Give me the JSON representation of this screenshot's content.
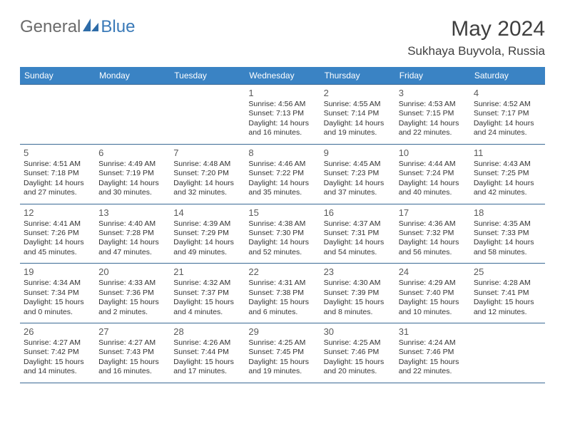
{
  "brand": {
    "general": "General",
    "blue": "Blue"
  },
  "title": "May 2024",
  "location": "Sukhaya Buyvola, Russia",
  "colors": {
    "header_bg": "#3a83c4",
    "row_border": "#3a6a95",
    "brand_gray": "#6b6b6b",
    "brand_blue": "#3a7ab8",
    "text": "#333333",
    "bg": "#ffffff"
  },
  "dow": [
    "Sunday",
    "Monday",
    "Tuesday",
    "Wednesday",
    "Thursday",
    "Friday",
    "Saturday"
  ],
  "weeks": [
    [
      null,
      null,
      null,
      {
        "n": "1",
        "sr": "4:56 AM",
        "ss": "7:13 PM",
        "dh": "14",
        "dm": "16"
      },
      {
        "n": "2",
        "sr": "4:55 AM",
        "ss": "7:14 PM",
        "dh": "14",
        "dm": "19"
      },
      {
        "n": "3",
        "sr": "4:53 AM",
        "ss": "7:15 PM",
        "dh": "14",
        "dm": "22"
      },
      {
        "n": "4",
        "sr": "4:52 AM",
        "ss": "7:17 PM",
        "dh": "14",
        "dm": "24"
      }
    ],
    [
      {
        "n": "5",
        "sr": "4:51 AM",
        "ss": "7:18 PM",
        "dh": "14",
        "dm": "27"
      },
      {
        "n": "6",
        "sr": "4:49 AM",
        "ss": "7:19 PM",
        "dh": "14",
        "dm": "30"
      },
      {
        "n": "7",
        "sr": "4:48 AM",
        "ss": "7:20 PM",
        "dh": "14",
        "dm": "32"
      },
      {
        "n": "8",
        "sr": "4:46 AM",
        "ss": "7:22 PM",
        "dh": "14",
        "dm": "35"
      },
      {
        "n": "9",
        "sr": "4:45 AM",
        "ss": "7:23 PM",
        "dh": "14",
        "dm": "37"
      },
      {
        "n": "10",
        "sr": "4:44 AM",
        "ss": "7:24 PM",
        "dh": "14",
        "dm": "40"
      },
      {
        "n": "11",
        "sr": "4:43 AM",
        "ss": "7:25 PM",
        "dh": "14",
        "dm": "42"
      }
    ],
    [
      {
        "n": "12",
        "sr": "4:41 AM",
        "ss": "7:26 PM",
        "dh": "14",
        "dm": "45"
      },
      {
        "n": "13",
        "sr": "4:40 AM",
        "ss": "7:28 PM",
        "dh": "14",
        "dm": "47"
      },
      {
        "n": "14",
        "sr": "4:39 AM",
        "ss": "7:29 PM",
        "dh": "14",
        "dm": "49"
      },
      {
        "n": "15",
        "sr": "4:38 AM",
        "ss": "7:30 PM",
        "dh": "14",
        "dm": "52"
      },
      {
        "n": "16",
        "sr": "4:37 AM",
        "ss": "7:31 PM",
        "dh": "14",
        "dm": "54"
      },
      {
        "n": "17",
        "sr": "4:36 AM",
        "ss": "7:32 PM",
        "dh": "14",
        "dm": "56"
      },
      {
        "n": "18",
        "sr": "4:35 AM",
        "ss": "7:33 PM",
        "dh": "14",
        "dm": "58"
      }
    ],
    [
      {
        "n": "19",
        "sr": "4:34 AM",
        "ss": "7:34 PM",
        "dh": "15",
        "dm": "0"
      },
      {
        "n": "20",
        "sr": "4:33 AM",
        "ss": "7:36 PM",
        "dh": "15",
        "dm": "2"
      },
      {
        "n": "21",
        "sr": "4:32 AM",
        "ss": "7:37 PM",
        "dh": "15",
        "dm": "4"
      },
      {
        "n": "22",
        "sr": "4:31 AM",
        "ss": "7:38 PM",
        "dh": "15",
        "dm": "6"
      },
      {
        "n": "23",
        "sr": "4:30 AM",
        "ss": "7:39 PM",
        "dh": "15",
        "dm": "8"
      },
      {
        "n": "24",
        "sr": "4:29 AM",
        "ss": "7:40 PM",
        "dh": "15",
        "dm": "10"
      },
      {
        "n": "25",
        "sr": "4:28 AM",
        "ss": "7:41 PM",
        "dh": "15",
        "dm": "12"
      }
    ],
    [
      {
        "n": "26",
        "sr": "4:27 AM",
        "ss": "7:42 PM",
        "dh": "15",
        "dm": "14"
      },
      {
        "n": "27",
        "sr": "4:27 AM",
        "ss": "7:43 PM",
        "dh": "15",
        "dm": "16"
      },
      {
        "n": "28",
        "sr": "4:26 AM",
        "ss": "7:44 PM",
        "dh": "15",
        "dm": "17"
      },
      {
        "n": "29",
        "sr": "4:25 AM",
        "ss": "7:45 PM",
        "dh": "15",
        "dm": "19"
      },
      {
        "n": "30",
        "sr": "4:25 AM",
        "ss": "7:46 PM",
        "dh": "15",
        "dm": "20"
      },
      {
        "n": "31",
        "sr": "4:24 AM",
        "ss": "7:46 PM",
        "dh": "15",
        "dm": "22"
      },
      null
    ]
  ]
}
